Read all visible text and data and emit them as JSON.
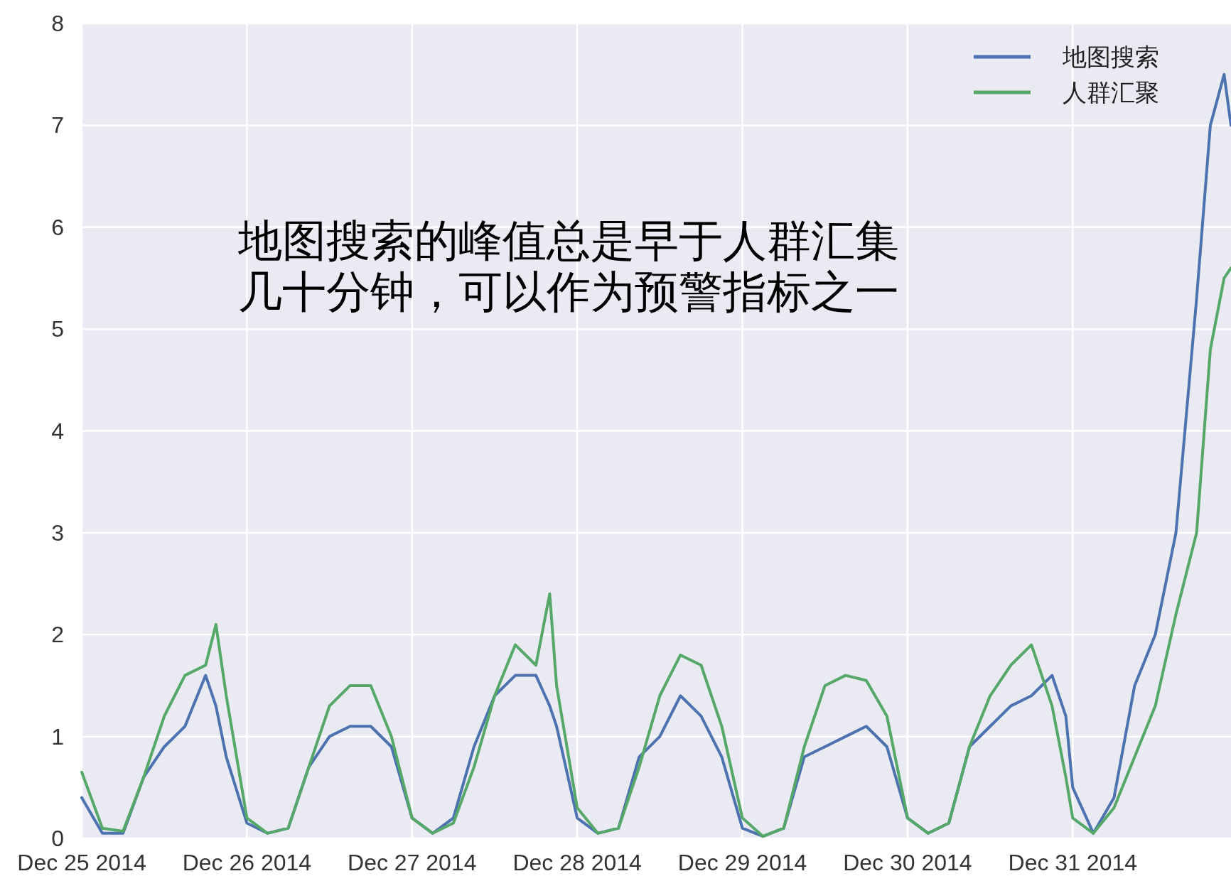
{
  "chart_data": {
    "type": "line",
    "x": [
      "2014-12-25T00:00",
      "2014-12-25T03:00",
      "2014-12-25T06:00",
      "2014-12-25T09:00",
      "2014-12-25T12:00",
      "2014-12-25T15:00",
      "2014-12-25T18:00",
      "2014-12-25T19:30",
      "2014-12-25T21:00",
      "2014-12-26T00:00",
      "2014-12-26T03:00",
      "2014-12-26T06:00",
      "2014-12-26T09:00",
      "2014-12-26T12:00",
      "2014-12-26T15:00",
      "2014-12-26T18:00",
      "2014-12-26T21:00",
      "2014-12-27T00:00",
      "2014-12-27T03:00",
      "2014-12-27T06:00",
      "2014-12-27T09:00",
      "2014-12-27T12:00",
      "2014-12-27T15:00",
      "2014-12-27T18:00",
      "2014-12-27T20:00",
      "2014-12-27T21:00",
      "2014-12-28T00:00",
      "2014-12-28T03:00",
      "2014-12-28T06:00",
      "2014-12-28T09:00",
      "2014-12-28T12:00",
      "2014-12-28T15:00",
      "2014-12-28T18:00",
      "2014-12-28T21:00",
      "2014-12-29T00:00",
      "2014-12-29T03:00",
      "2014-12-29T06:00",
      "2014-12-29T09:00",
      "2014-12-29T12:00",
      "2014-12-29T15:00",
      "2014-12-29T18:00",
      "2014-12-29T21:00",
      "2014-12-30T00:00",
      "2014-12-30T03:00",
      "2014-12-30T06:00",
      "2014-12-30T09:00",
      "2014-12-30T12:00",
      "2014-12-30T15:00",
      "2014-12-30T18:00",
      "2014-12-30T21:00",
      "2014-12-30T23:00",
      "2014-12-31T00:00",
      "2014-12-31T03:00",
      "2014-12-31T06:00",
      "2014-12-31T09:00",
      "2014-12-31T12:00",
      "2014-12-31T15:00",
      "2014-12-31T18:00",
      "2014-12-31T20:00",
      "2014-12-31T22:00",
      "2014-12-31T23:00"
    ],
    "series": [
      {
        "name": "地图搜索",
        "color": "#4c72b0",
        "values": [
          0.4,
          0.05,
          0.05,
          0.6,
          0.9,
          1.1,
          1.6,
          1.3,
          0.8,
          0.15,
          0.05,
          0.1,
          0.7,
          1.0,
          1.1,
          1.1,
          0.9,
          0.2,
          0.05,
          0.2,
          0.9,
          1.4,
          1.6,
          1.6,
          1.3,
          1.1,
          0.2,
          0.05,
          0.1,
          0.8,
          1.0,
          1.4,
          1.2,
          0.8,
          0.1,
          0.02,
          0.1,
          0.8,
          0.9,
          1.0,
          1.1,
          0.9,
          0.2,
          0.05,
          0.15,
          0.9,
          1.1,
          1.3,
          1.4,
          1.6,
          1.2,
          0.5,
          0.05,
          0.4,
          1.5,
          2.0,
          3.0,
          5.3,
          7.0,
          7.5,
          7.0
        ]
      },
      {
        "name": "人群汇聚",
        "color": "#55a868",
        "values": [
          0.65,
          0.1,
          0.07,
          0.6,
          1.2,
          1.6,
          1.7,
          2.1,
          1.4,
          0.2,
          0.05,
          0.1,
          0.7,
          1.3,
          1.5,
          1.5,
          1.0,
          0.2,
          0.05,
          0.15,
          0.7,
          1.4,
          1.9,
          1.7,
          2.4,
          1.5,
          0.3,
          0.05,
          0.1,
          0.7,
          1.4,
          1.8,
          1.7,
          1.1,
          0.2,
          0.02,
          0.1,
          0.9,
          1.5,
          1.6,
          1.55,
          1.2,
          0.2,
          0.05,
          0.15,
          0.9,
          1.4,
          1.7,
          1.9,
          1.3,
          0.6,
          0.2,
          0.05,
          0.3,
          0.8,
          1.3,
          2.2,
          3.0,
          4.8,
          5.5,
          5.6
        ]
      }
    ],
    "xlim": [
      "2014-12-25T00:00",
      "2014-12-31T23:00"
    ],
    "xticks": [
      {
        "value": "2014-12-25",
        "label": "Dec 25 2014"
      },
      {
        "value": "2014-12-26",
        "label": "Dec 26 2014"
      },
      {
        "value": "2014-12-27",
        "label": "Dec 27 2014"
      },
      {
        "value": "2014-12-28",
        "label": "Dec 28 2014"
      },
      {
        "value": "2014-12-29",
        "label": "Dec 29 2014"
      },
      {
        "value": "2014-12-30",
        "label": "Dec 30 2014"
      },
      {
        "value": "2014-12-31",
        "label": "Dec 31 2014"
      }
    ],
    "ylim": [
      0,
      8
    ],
    "yticks": [
      0,
      1,
      2,
      3,
      4,
      5,
      6,
      7,
      8
    ],
    "grid": true,
    "legend": "top right",
    "annotations": [
      "地图搜索的峰值总是早于人群汇集",
      "几十分钟，可以作为预警指标之一"
    ]
  }
}
